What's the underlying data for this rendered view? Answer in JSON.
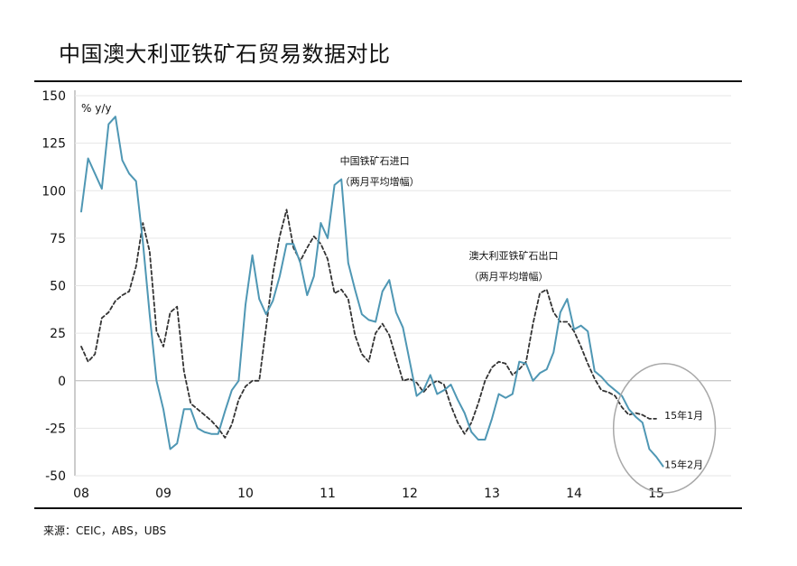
{
  "title": "中国澳大利亚铁矿石贸易数据对比",
  "source": "来源：CEIC，ABS，UBS",
  "chart_data": {
    "type": "line",
    "title": "中国澳大利亚铁矿石贸易数据对比",
    "ylabel": "% y/y",
    "ylim": [
      -50,
      150
    ],
    "xlim": [
      2008,
      2015.4
    ],
    "yticks": [
      150,
      125,
      100,
      75,
      50,
      25,
      0,
      -25,
      -50
    ],
    "xticks": [
      {
        "x": 2008,
        "label": "08"
      },
      {
        "x": 2009,
        "label": "09"
      },
      {
        "x": 2010,
        "label": "10"
      },
      {
        "x": 2011,
        "label": "11"
      },
      {
        "x": 2012,
        "label": "12"
      },
      {
        "x": 2013,
        "label": "13"
      },
      {
        "x": 2014,
        "label": "14"
      },
      {
        "x": 2015,
        "label": "15"
      }
    ],
    "colors": {
      "china": "#4f97b4",
      "australia": "#333333"
    },
    "series": [
      {
        "name": "中国铁矿石进口（两月平均增幅）",
        "style": "solid",
        "x": [
          2008.0,
          2008.083,
          2008.167,
          2008.25,
          2008.333,
          2008.417,
          2008.5,
          2008.583,
          2008.667,
          2008.75,
          2008.833,
          2008.917,
          2009.0,
          2009.083,
          2009.167,
          2009.25,
          2009.333,
          2009.417,
          2009.5,
          2009.583,
          2009.667,
          2009.75,
          2009.833,
          2009.917,
          2010.0,
          2010.083,
          2010.167,
          2010.25,
          2010.333,
          2010.417,
          2010.5,
          2010.583,
          2010.667,
          2010.75,
          2010.833,
          2010.917,
          2011.0,
          2011.083,
          2011.167,
          2011.25,
          2011.333,
          2011.417,
          2011.5,
          2011.583,
          2011.667,
          2011.75,
          2011.833,
          2011.917,
          2012.0,
          2012.083,
          2012.167,
          2012.25,
          2012.333,
          2012.417,
          2012.5,
          2012.583,
          2012.667,
          2012.75,
          2012.833,
          2012.917,
          2013.0,
          2013.083,
          2013.167,
          2013.25,
          2013.333,
          2013.417,
          2013.5,
          2013.583,
          2013.667,
          2013.75,
          2013.833,
          2013.917,
          2014.0,
          2014.083,
          2014.167,
          2014.25,
          2014.333,
          2014.417,
          2014.5,
          2014.583,
          2014.667,
          2014.75,
          2014.833,
          2014.917,
          2015.0,
          2015.083
        ],
        "values": [
          89,
          117,
          109,
          101,
          135,
          139,
          116,
          109,
          105,
          73,
          35,
          0,
          -15,
          -36,
          -33,
          -15,
          -15,
          -25,
          -27,
          -28,
          -28,
          -16,
          -5,
          0,
          40,
          66,
          43,
          35,
          42,
          55,
          72,
          72,
          62,
          45,
          55,
          83,
          75,
          103,
          106,
          62,
          48,
          35,
          32,
          31,
          47,
          53,
          36,
          28,
          10,
          -8,
          -5,
          3,
          -7,
          -5,
          -2,
          -10,
          -17,
          -27,
          -31,
          -31,
          -20,
          -7,
          -9,
          -7,
          10,
          9,
          0,
          4,
          6,
          15,
          36,
          43,
          27,
          29,
          26,
          5,
          2,
          -2,
          -5,
          -8,
          -15,
          -19,
          -22,
          -36,
          -40,
          -45
        ]
      },
      {
        "name": "澳大利亚铁矿石出口（两月平均增幅）",
        "style": "dashed",
        "x": [
          2008.0,
          2008.083,
          2008.167,
          2008.25,
          2008.333,
          2008.417,
          2008.5,
          2008.583,
          2008.667,
          2008.75,
          2008.833,
          2008.917,
          2009.0,
          2009.083,
          2009.167,
          2009.25,
          2009.333,
          2009.417,
          2009.5,
          2009.583,
          2009.667,
          2009.75,
          2009.833,
          2009.917,
          2010.0,
          2010.083,
          2010.167,
          2010.25,
          2010.333,
          2010.417,
          2010.5,
          2010.583,
          2010.667,
          2010.75,
          2010.833,
          2010.917,
          2011.0,
          2011.083,
          2011.167,
          2011.25,
          2011.333,
          2011.417,
          2011.5,
          2011.583,
          2011.667,
          2011.75,
          2011.833,
          2011.917,
          2012.0,
          2012.083,
          2012.167,
          2012.25,
          2012.333,
          2012.417,
          2012.5,
          2012.583,
          2012.667,
          2012.75,
          2012.833,
          2012.917,
          2013.0,
          2013.083,
          2013.167,
          2013.25,
          2013.333,
          2013.417,
          2013.5,
          2013.583,
          2013.667,
          2013.75,
          2013.833,
          2013.917,
          2014.0,
          2014.083,
          2014.167,
          2014.25,
          2014.333,
          2014.417,
          2014.5,
          2014.583,
          2014.667,
          2014.75,
          2014.833,
          2014.917,
          2015.0
        ],
        "values": [
          18,
          10,
          14,
          33,
          36,
          42,
          45,
          47,
          60,
          83,
          68,
          26,
          18,
          36,
          39,
          5,
          -12,
          -15,
          -18,
          -21,
          -25,
          -30,
          -23,
          -10,
          -3,
          0,
          0,
          28,
          56,
          76,
          90,
          70,
          63,
          70,
          76,
          72,
          64,
          46,
          48,
          43,
          24,
          14,
          10,
          25,
          30,
          24,
          12,
          0,
          1,
          -1,
          -6,
          -2,
          0,
          -2,
          -13,
          -22,
          -28,
          -22,
          -12,
          0,
          7,
          10,
          9,
          3,
          6,
          10,
          30,
          46,
          48,
          36,
          31,
          31,
          26,
          18,
          9,
          1,
          -5,
          -6,
          -8,
          -14,
          -18,
          -17,
          -18,
          -20,
          -20
        ]
      }
    ],
    "annotations": [
      {
        "text": "中国铁矿石进口",
        "x": 2011.15,
        "y": 114
      },
      {
        "text": "（两月平均增幅）",
        "x": 2011.15,
        "y": 103
      },
      {
        "text": "澳大利亚铁矿石出口",
        "x": 2012.72,
        "y": 64
      },
      {
        "text": "（两月平均增幅）",
        "x": 2012.72,
        "y": 53
      },
      {
        "text": "15年1月",
        "x": 2015.1,
        "y": -20
      },
      {
        "text": "15年2月",
        "x": 2015.1,
        "y": -46
      }
    ],
    "highlight_circle": {
      "cx": 2015.1,
      "cy": -25,
      "rx_years": 0.62,
      "ry_units": 34
    }
  }
}
